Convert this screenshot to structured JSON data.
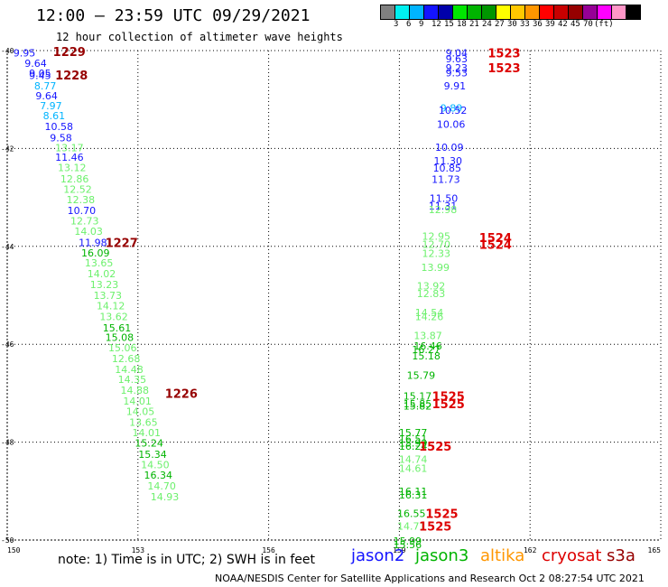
{
  "header": {
    "title": "12:00 – 23:59 UTC 09/29/2021",
    "subtitle": "12 hour collection of altimeter wave heights"
  },
  "color_scale": {
    "labels": [
      "3",
      "6",
      "9",
      "12",
      "15",
      "18",
      "21",
      "24",
      "27",
      "30",
      "33",
      "36",
      "39",
      "42",
      "45",
      "70",
      "(ft)"
    ],
    "colors": [
      "#808080",
      "#00f0f0",
      "#00b4ff",
      "#1414ff",
      "#0000aa",
      "#00e600",
      "#00b400",
      "#009600",
      "#ffff00",
      "#ffc800",
      "#ff9600",
      "#ff0000",
      "#c80000",
      "#960000",
      "#960096",
      "#ff00ff",
      "#ff96c8",
      "#000000"
    ]
  },
  "footer": {
    "note": "note:  1) Time is in UTC;  2) SWH is in feet",
    "credit": "NOAA/NESDIS Center for Satellite Applications and Research     Oct  2 08:27:54 UTC 2021",
    "satellites": [
      {
        "name": "jason2",
        "color": "#1414ff"
      },
      {
        "name": "jason3",
        "color": "#00b400"
      },
      {
        "name": "altika",
        "color": "#ff9600"
      },
      {
        "name": "cryosat",
        "color": "#dd0000"
      },
      {
        "name": "s3a",
        "color": "#960000"
      }
    ]
  },
  "chart_data": {
    "type": "scatter",
    "xlim": [
      150,
      165
    ],
    "ylim": [
      -50,
      -40
    ],
    "x_ticks": [
      "150",
      "153",
      "156",
      "159",
      "162",
      "165"
    ],
    "y_ticks": [
      "-40",
      "-42",
      "-44",
      "-46",
      "-48",
      "-50"
    ],
    "grid": true,
    "track_points": [
      {
        "x": 150.14,
        "y": -40.05,
        "label": "9.95",
        "color": "#1414ff"
      },
      {
        "x": 150.4,
        "y": -40.26,
        "label": "9.64",
        "color": "#1414ff"
      },
      {
        "x": 150.5,
        "y": -40.46,
        "label": "9.05",
        "color": "#1414ff"
      },
      {
        "x": 150.5,
        "y": -40.51,
        "label": "9.45",
        "color": "#1414ff"
      },
      {
        "x": 150.62,
        "y": -40.72,
        "label": "8.77",
        "color": "#00b4ff"
      },
      {
        "x": 150.65,
        "y": -40.92,
        "label": "9.64",
        "color": "#1414ff"
      },
      {
        "x": 150.75,
        "y": -41.13,
        "label": "7.97",
        "color": "#00b4ff"
      },
      {
        "x": 150.82,
        "y": -41.33,
        "label": "8.61",
        "color": "#00b4ff"
      },
      {
        "x": 150.86,
        "y": -41.55,
        "label": "10.58",
        "color": "#1414ff"
      },
      {
        "x": 150.98,
        "y": -41.78,
        "label": "9.58",
        "color": "#1414ff"
      },
      {
        "x": 151.1,
        "y": -41.98,
        "label": "13.17",
        "color": "#6cf06c"
      },
      {
        "x": 151.1,
        "y": -42.18,
        "label": "11.46",
        "color": "#1414ff"
      },
      {
        "x": 151.16,
        "y": -42.39,
        "label": "13.12",
        "color": "#6cf06c"
      },
      {
        "x": 151.22,
        "y": -42.62,
        "label": "12.86",
        "color": "#6cf06c"
      },
      {
        "x": 151.29,
        "y": -42.83,
        "label": "12.52",
        "color": "#6cf06c"
      },
      {
        "x": 151.36,
        "y": -43.04,
        "label": "12.38",
        "color": "#6cf06c"
      },
      {
        "x": 151.38,
        "y": -43.27,
        "label": "10.70",
        "color": "#1414ff"
      },
      {
        "x": 151.45,
        "y": -43.48,
        "label": "12.73",
        "color": "#6cf06c"
      },
      {
        "x": 151.54,
        "y": -43.69,
        "label": "14.03",
        "color": "#6cf06c"
      },
      {
        "x": 151.64,
        "y": -43.92,
        "label": "11.98",
        "color": "#1414ff"
      },
      {
        "x": 151.7,
        "y": -44.13,
        "label": "16.09",
        "color": "#00b400"
      },
      {
        "x": 151.78,
        "y": -44.34,
        "label": "13.65",
        "color": "#6cf06c"
      },
      {
        "x": 151.84,
        "y": -44.56,
        "label": "14.02",
        "color": "#6cf06c"
      },
      {
        "x": 151.9,
        "y": -44.78,
        "label": "13.23",
        "color": "#6cf06c"
      },
      {
        "x": 151.98,
        "y": -45.0,
        "label": "13.73",
        "color": "#6cf06c"
      },
      {
        "x": 152.05,
        "y": -45.21,
        "label": "14.12",
        "color": "#6cf06c"
      },
      {
        "x": 152.12,
        "y": -45.43,
        "label": "13.62",
        "color": "#6cf06c"
      },
      {
        "x": 152.19,
        "y": -45.66,
        "label": "15.61",
        "color": "#00b400"
      },
      {
        "x": 152.25,
        "y": -45.86,
        "label": "15.08",
        "color": "#00b400"
      },
      {
        "x": 152.32,
        "y": -46.07,
        "label": "15.06",
        "color": "#6cf06c"
      },
      {
        "x": 152.4,
        "y": -46.29,
        "label": "12.68",
        "color": "#6cf06c"
      },
      {
        "x": 152.47,
        "y": -46.51,
        "label": "14.48",
        "color": "#6cf06c"
      },
      {
        "x": 152.54,
        "y": -46.72,
        "label": "14.35",
        "color": "#6cf06c"
      },
      {
        "x": 152.6,
        "y": -46.94,
        "label": "14.88",
        "color": "#6cf06c"
      },
      {
        "x": 152.66,
        "y": -47.16,
        "label": "14.01",
        "color": "#6cf06c"
      },
      {
        "x": 152.73,
        "y": -47.37,
        "label": "14.05",
        "color": "#6cf06c"
      },
      {
        "x": 152.8,
        "y": -47.59,
        "label": "13.65",
        "color": "#6cf06c"
      },
      {
        "x": 152.87,
        "y": -47.8,
        "label": "14.01",
        "color": "#6cf06c"
      },
      {
        "x": 152.93,
        "y": -48.02,
        "label": "15.24",
        "color": "#00b400"
      },
      {
        "x": 153.01,
        "y": -48.25,
        "label": "15.34",
        "color": "#00b400"
      },
      {
        "x": 153.07,
        "y": -48.46,
        "label": "14.50",
        "color": "#6cf06c"
      },
      {
        "x": 153.14,
        "y": -48.67,
        "label": "16.34",
        "color": "#00b400"
      },
      {
        "x": 153.22,
        "y": -48.89,
        "label": "14.70",
        "color": "#6cf06c"
      },
      {
        "x": 153.29,
        "y": -49.11,
        "label": "14.93",
        "color": "#6cf06c"
      },
      {
        "x": 160.06,
        "y": -40.05,
        "label": "9.04",
        "color": "#1414ff"
      },
      {
        "x": 160.06,
        "y": -40.17,
        "label": "9.63",
        "color": "#1414ff"
      },
      {
        "x": 160.06,
        "y": -40.35,
        "label": "9.23",
        "color": "#1414ff"
      },
      {
        "x": 160.06,
        "y": -40.45,
        "label": "9.53",
        "color": "#1414ff"
      },
      {
        "x": 160.02,
        "y": -40.72,
        "label": "9.91",
        "color": "#1414ff"
      },
      {
        "x": 159.94,
        "y": -41.17,
        "label": "9.89",
        "color": "#00b4ff"
      },
      {
        "x": 159.9,
        "y": -41.22,
        "label": "10.52",
        "color": "#1414ff"
      },
      {
        "x": 159.86,
        "y": -41.5,
        "label": "10.06",
        "color": "#1414ff"
      },
      {
        "x": 159.82,
        "y": -41.97,
        "label": "10.09",
        "color": "#1414ff"
      },
      {
        "x": 159.79,
        "y": -42.25,
        "label": "11.30",
        "color": "#1414ff"
      },
      {
        "x": 159.77,
        "y": -42.4,
        "label": "10.85",
        "color": "#1414ff"
      },
      {
        "x": 159.74,
        "y": -42.63,
        "label": "11.73",
        "color": "#1414ff"
      },
      {
        "x": 159.69,
        "y": -43.02,
        "label": "11.50",
        "color": "#1414ff"
      },
      {
        "x": 159.67,
        "y": -43.17,
        "label": "11.31",
        "color": "#1414ff"
      },
      {
        "x": 159.67,
        "y": -43.25,
        "label": "12.98",
        "color": "#6cf06c"
      },
      {
        "x": 159.52,
        "y": -43.79,
        "label": "12.95",
        "color": "#6cf06c"
      },
      {
        "x": 159.52,
        "y": -43.96,
        "label": "12.70",
        "color": "#6cf06c"
      },
      {
        "x": 159.52,
        "y": -44.14,
        "label": "12.33",
        "color": "#6cf06c"
      },
      {
        "x": 159.5,
        "y": -44.43,
        "label": "13.99",
        "color": "#6cf06c"
      },
      {
        "x": 159.4,
        "y": -44.81,
        "label": "13.92",
        "color": "#6cf06c"
      },
      {
        "x": 159.4,
        "y": -44.96,
        "label": "12.83",
        "color": "#6cf06c"
      },
      {
        "x": 159.36,
        "y": -45.35,
        "label": "14.54",
        "color": "#6cf06c"
      },
      {
        "x": 159.36,
        "y": -45.43,
        "label": "14.26",
        "color": "#6cf06c"
      },
      {
        "x": 159.33,
        "y": -45.82,
        "label": "13.87",
        "color": "#6cf06c"
      },
      {
        "x": 159.33,
        "y": -46.03,
        "label": "16.46",
        "color": "#00b400"
      },
      {
        "x": 159.29,
        "y": -46.11,
        "label": "16.27",
        "color": "#00b400"
      },
      {
        "x": 159.29,
        "y": -46.24,
        "label": "15.18",
        "color": "#00b400"
      },
      {
        "x": 159.17,
        "y": -46.63,
        "label": "15.79",
        "color": "#00b400"
      },
      {
        "x": 159.09,
        "y": -47.06,
        "label": "15.17",
        "color": "#00b400"
      },
      {
        "x": 159.09,
        "y": -47.21,
        "label": "15.85",
        "color": "#00b400"
      },
      {
        "x": 159.09,
        "y": -47.26,
        "label": "15.82",
        "color": "#00b400"
      },
      {
        "x": 158.99,
        "y": -47.8,
        "label": "15.77",
        "color": "#00b400"
      },
      {
        "x": 158.99,
        "y": -47.93,
        "label": "16.51",
        "color": "#00b400"
      },
      {
        "x": 158.99,
        "y": -48.02,
        "label": "15.99",
        "color": "#00b400"
      },
      {
        "x": 158.99,
        "y": -48.08,
        "label": "16.24",
        "color": "#00b400"
      },
      {
        "x": 158.99,
        "y": -48.35,
        "label": "14.74",
        "color": "#6cf06c"
      },
      {
        "x": 158.99,
        "y": -48.53,
        "label": "14.61",
        "color": "#6cf06c"
      },
      {
        "x": 158.99,
        "y": -49.0,
        "label": "16.11",
        "color": "#00b400"
      },
      {
        "x": 158.99,
        "y": -49.08,
        "label": "16.31",
        "color": "#00b400"
      },
      {
        "x": 158.95,
        "y": -49.46,
        "label": "16.55",
        "color": "#00b400"
      },
      {
        "x": 158.95,
        "y": -49.71,
        "label": "14.71",
        "color": "#6cf06c"
      },
      {
        "x": 158.86,
        "y": -50.02,
        "label": "15.99",
        "color": "#00b400"
      },
      {
        "x": 158.86,
        "y": -50.09,
        "label": "15.56",
        "color": "#00b400"
      }
    ],
    "time_labels": [
      {
        "x": 151.05,
        "y": -40.02,
        "label": "1229",
        "color": "#960000"
      },
      {
        "x": 151.1,
        "y": -40.5,
        "label": "1228",
        "color": "#960000"
      },
      {
        "x": 152.25,
        "y": -43.92,
        "label": "1227",
        "color": "#960000"
      },
      {
        "x": 153.62,
        "y": -47.0,
        "label": "1226",
        "color": "#960000"
      },
      {
        "x": 161.03,
        "y": -40.05,
        "label": "1523",
        "color": "#dd0000"
      },
      {
        "x": 161.03,
        "y": -40.35,
        "label": "1523",
        "color": "#dd0000"
      },
      {
        "x": 160.83,
        "y": -43.82,
        "label": "1524",
        "color": "#dd0000"
      },
      {
        "x": 160.83,
        "y": -43.96,
        "label": "1524",
        "color": "#dd0000"
      },
      {
        "x": 159.75,
        "y": -47.06,
        "label": "1525",
        "color": "#dd0000"
      },
      {
        "x": 159.75,
        "y": -47.21,
        "label": "1525",
        "color": "#dd0000"
      },
      {
        "x": 159.45,
        "y": -48.08,
        "label": "1525",
        "color": "#dd0000"
      },
      {
        "x": 159.6,
        "y": -49.46,
        "label": "1525",
        "color": "#dd0000"
      },
      {
        "x": 159.45,
        "y": -49.71,
        "label": "1525",
        "color": "#dd0000"
      }
    ]
  }
}
